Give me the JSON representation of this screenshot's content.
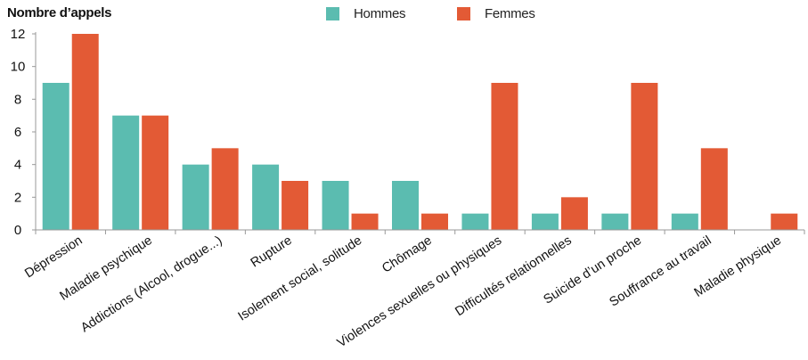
{
  "chart_data": {
    "type": "bar",
    "ylabel": "Nombre d’appels",
    "xlabel": "",
    "ylim": [
      0,
      12
    ],
    "yticks": [
      0,
      2,
      4,
      6,
      8,
      10,
      12
    ],
    "categories": [
      "Dépression",
      "Maladie psychique",
      "Addictions (Alcool, drogue...)",
      "Rupture",
      "Isolement social, solitude",
      "Chômage",
      "Violences sexuelles ou physiques",
      "Difficultés relationnelles",
      "Suicide d’un proche",
      "Souffrance au travail",
      "Maladie physique"
    ],
    "series": [
      {
        "name": "Hommes",
        "color": "#5bbcb0",
        "values": [
          9,
          7,
          4,
          4,
          3,
          3,
          1,
          1,
          1,
          1,
          0
        ]
      },
      {
        "name": "Femmes",
        "color": "#e35a35",
        "values": [
          12,
          7,
          5,
          3,
          1,
          1,
          9,
          2,
          9,
          5,
          1
        ]
      }
    ],
    "legend_position": "top-center",
    "grid": false
  }
}
